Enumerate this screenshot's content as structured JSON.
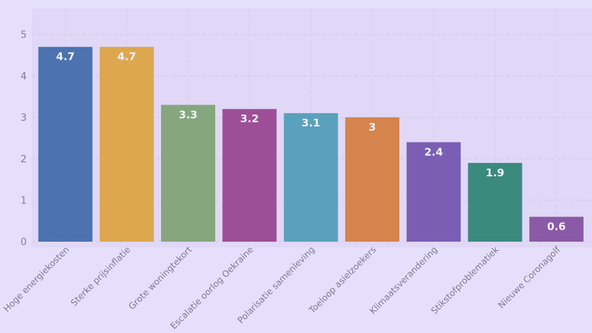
{
  "chart_data": {
    "type": "bar",
    "categories": [
      "Hoge energiekosten",
      "Sterke prijsinflatie",
      "Grote woningtekort",
      "Escalatie oorlog Oekraine",
      "Polarisatie samenleving",
      "Toeloop asielzoekers",
      "Klimaatsverandering",
      "Stikstofproblematiek",
      "Nieuwe Coronagolf"
    ],
    "values": [
      4.7,
      4.7,
      3.3,
      3.2,
      3.1,
      3,
      2.4,
      1.9,
      0.6
    ],
    "data_labels": [
      "4.7",
      "4.7",
      "3.3",
      "3.2",
      "3.1",
      "3",
      "2.4",
      "1.9",
      "0.6"
    ],
    "yticks": [
      "0",
      "1",
      "2",
      "3",
      "4",
      "5"
    ],
    "ylim": [
      0,
      5.5
    ],
    "grid": true,
    "colors": [
      "#4c72b0",
      "#dda74f",
      "#86a67d",
      "#9c4f97",
      "#5aa1bd",
      "#d6844d",
      "#7b5eb4",
      "#3b8a7e",
      "#8a5aa6"
    ],
    "title": "",
    "xlabel": "",
    "ylabel": ""
  }
}
